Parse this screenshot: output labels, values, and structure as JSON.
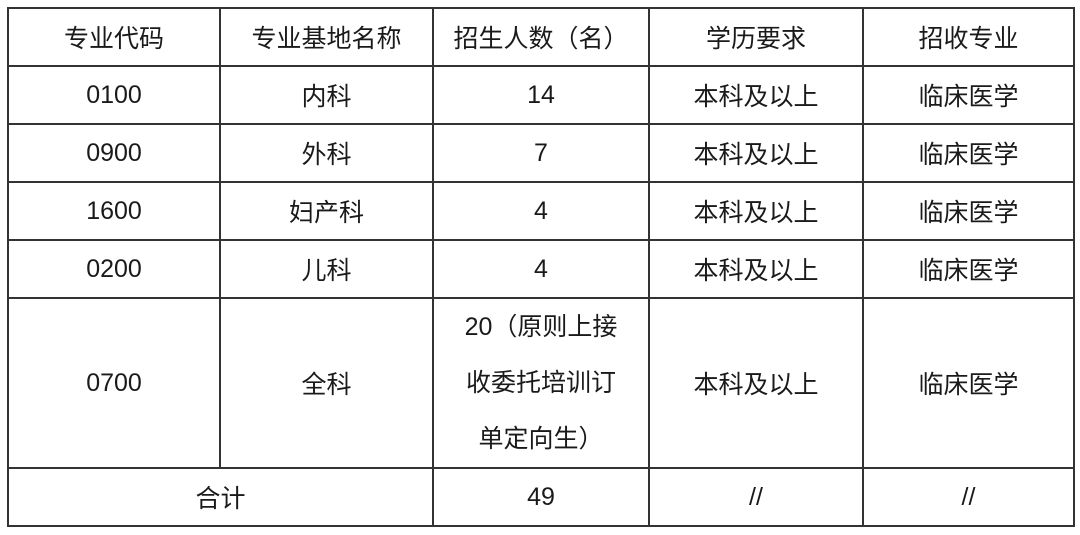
{
  "headers": [
    "专业代码",
    "专业基地名称",
    "招生人数（名）",
    "学历要求",
    "招收专业"
  ],
  "rows": [
    [
      "0100",
      "内科",
      "14",
      "本科及以上",
      "临床医学"
    ],
    [
      "0900",
      "外科",
      "7",
      "本科及以上",
      "临床医学"
    ],
    [
      "1600",
      "妇产科",
      "4",
      "本科及以上",
      "临床医学"
    ],
    [
      "0200",
      "儿科",
      "4",
      "本科及以上",
      "临床医学"
    ]
  ],
  "general": {
    "code": "0700",
    "name": "全科",
    "count_lines": [
      "20（原则上接",
      "收委托培训订",
      "单定向生）"
    ],
    "education": "本科及以上",
    "major": "临床医学"
  },
  "total": {
    "label": "合计",
    "count": "49",
    "education": "//",
    "major": "//"
  }
}
